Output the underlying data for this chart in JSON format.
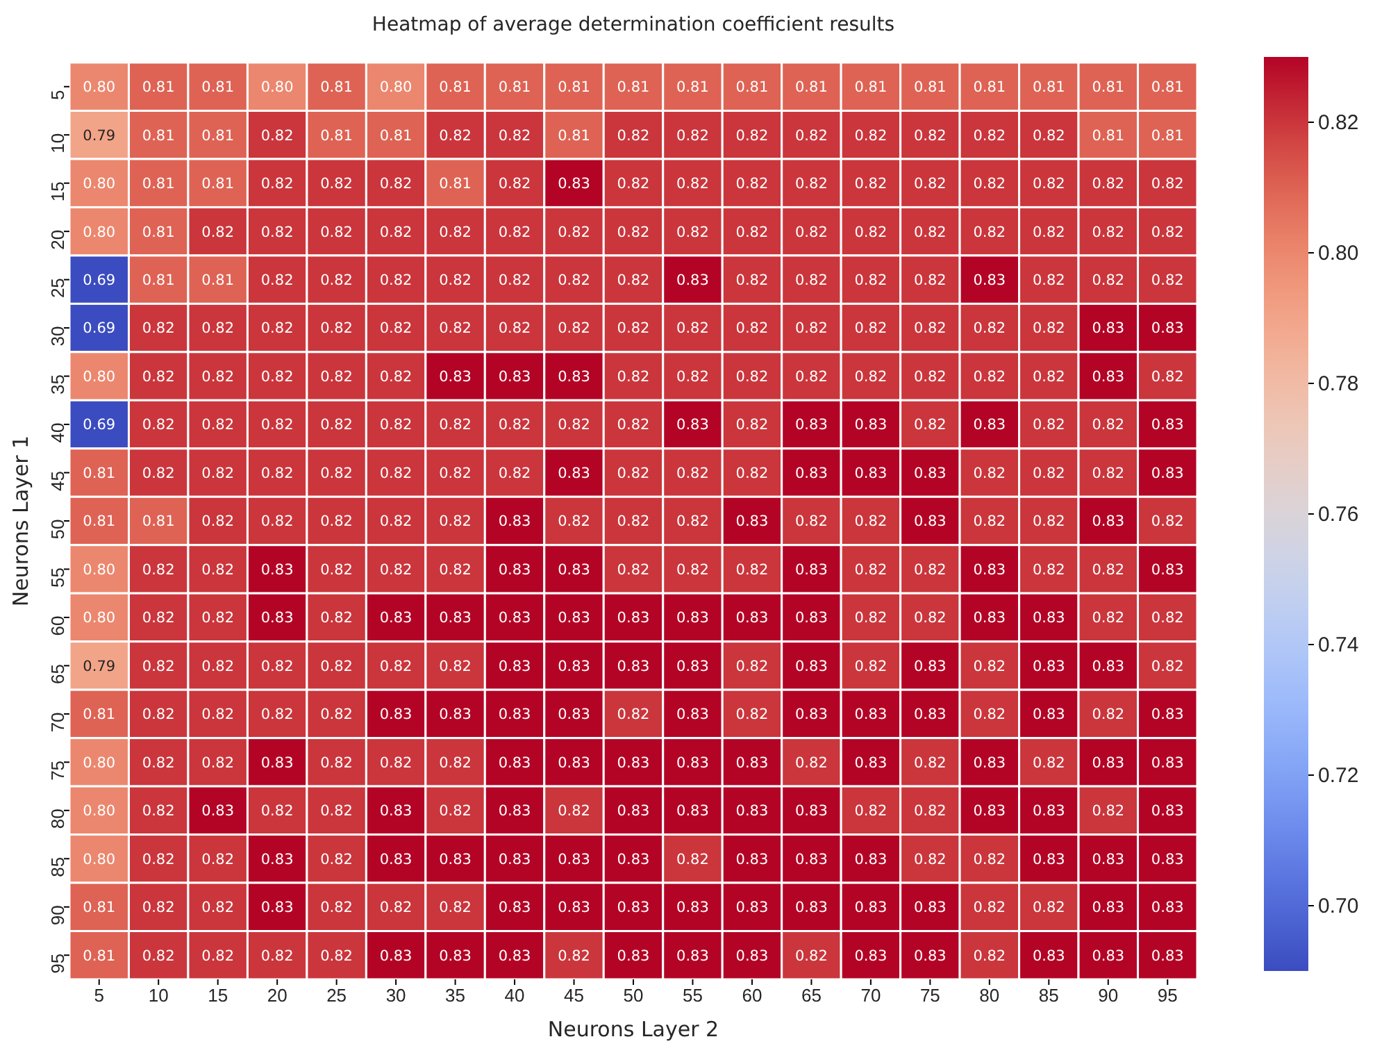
{
  "chart_data": {
    "type": "heatmap",
    "title": "Heatmap of average determination coefficient results",
    "xlabel": "Neurons Layer 2",
    "ylabel": "Neurons Layer 1",
    "categories": [
      "5",
      "10",
      "15",
      "20",
      "25",
      "30",
      "35",
      "40",
      "45",
      "50",
      "55",
      "60",
      "65",
      "70",
      "75",
      "80",
      "85",
      "90",
      "95"
    ],
    "y_categories": [
      "5",
      "10",
      "15",
      "20",
      "25",
      "30",
      "35",
      "40",
      "45",
      "50",
      "55",
      "60",
      "65",
      "70",
      "75",
      "80",
      "85",
      "90",
      "95"
    ],
    "cells": [
      [
        0.8,
        0.81,
        0.81,
        0.8,
        0.81,
        0.8,
        0.81,
        0.81,
        0.81,
        0.81,
        0.81,
        0.81,
        0.81,
        0.81,
        0.81,
        0.81,
        0.81,
        0.81,
        0.81
      ],
      [
        0.79,
        0.81,
        0.81,
        0.82,
        0.81,
        0.81,
        0.82,
        0.82,
        0.81,
        0.82,
        0.82,
        0.82,
        0.82,
        0.82,
        0.82,
        0.82,
        0.82,
        0.81,
        0.81
      ],
      [
        0.8,
        0.81,
        0.81,
        0.82,
        0.82,
        0.82,
        0.81,
        0.82,
        0.83,
        0.82,
        0.82,
        0.82,
        0.82,
        0.82,
        0.82,
        0.82,
        0.82,
        0.82,
        0.82
      ],
      [
        0.8,
        0.81,
        0.82,
        0.82,
        0.82,
        0.82,
        0.82,
        0.82,
        0.82,
        0.82,
        0.82,
        0.82,
        0.82,
        0.82,
        0.82,
        0.82,
        0.82,
        0.82,
        0.82
      ],
      [
        0.69,
        0.81,
        0.81,
        0.82,
        0.82,
        0.82,
        0.82,
        0.82,
        0.82,
        0.82,
        0.83,
        0.82,
        0.82,
        0.82,
        0.82,
        0.83,
        0.82,
        0.82,
        0.82
      ],
      [
        0.69,
        0.82,
        0.82,
        0.82,
        0.82,
        0.82,
        0.82,
        0.82,
        0.82,
        0.82,
        0.82,
        0.82,
        0.82,
        0.82,
        0.82,
        0.82,
        0.82,
        0.83,
        0.83
      ],
      [
        0.8,
        0.82,
        0.82,
        0.82,
        0.82,
        0.82,
        0.83,
        0.83,
        0.83,
        0.82,
        0.82,
        0.82,
        0.82,
        0.82,
        0.82,
        0.82,
        0.82,
        0.83,
        0.82
      ],
      [
        0.69,
        0.82,
        0.82,
        0.82,
        0.82,
        0.82,
        0.82,
        0.82,
        0.82,
        0.82,
        0.83,
        0.82,
        0.83,
        0.83,
        0.82,
        0.83,
        0.82,
        0.82,
        0.83
      ],
      [
        0.81,
        0.82,
        0.82,
        0.82,
        0.82,
        0.82,
        0.82,
        0.82,
        0.83,
        0.82,
        0.82,
        0.82,
        0.83,
        0.83,
        0.83,
        0.82,
        0.82,
        0.82,
        0.83
      ],
      [
        0.81,
        0.81,
        0.82,
        0.82,
        0.82,
        0.82,
        0.82,
        0.83,
        0.82,
        0.82,
        0.82,
        0.83,
        0.82,
        0.82,
        0.83,
        0.82,
        0.82,
        0.83,
        0.82
      ],
      [
        0.8,
        0.82,
        0.82,
        0.83,
        0.82,
        0.82,
        0.82,
        0.83,
        0.83,
        0.82,
        0.82,
        0.82,
        0.83,
        0.82,
        0.82,
        0.83,
        0.82,
        0.82,
        0.83
      ],
      [
        0.8,
        0.82,
        0.82,
        0.83,
        0.82,
        0.83,
        0.83,
        0.83,
        0.83,
        0.83,
        0.83,
        0.83,
        0.83,
        0.82,
        0.82,
        0.83,
        0.83,
        0.82,
        0.82
      ],
      [
        0.79,
        0.82,
        0.82,
        0.82,
        0.82,
        0.82,
        0.82,
        0.83,
        0.83,
        0.83,
        0.83,
        0.82,
        0.83,
        0.82,
        0.83,
        0.82,
        0.83,
        0.83,
        0.82
      ],
      [
        0.81,
        0.82,
        0.82,
        0.82,
        0.82,
        0.83,
        0.83,
        0.83,
        0.83,
        0.82,
        0.83,
        0.82,
        0.83,
        0.83,
        0.83,
        0.82,
        0.83,
        0.82,
        0.83
      ],
      [
        0.8,
        0.82,
        0.82,
        0.83,
        0.82,
        0.82,
        0.82,
        0.83,
        0.83,
        0.83,
        0.83,
        0.83,
        0.82,
        0.83,
        0.82,
        0.83,
        0.82,
        0.83,
        0.83
      ],
      [
        0.8,
        0.82,
        0.83,
        0.82,
        0.82,
        0.83,
        0.82,
        0.83,
        0.82,
        0.83,
        0.83,
        0.83,
        0.83,
        0.82,
        0.82,
        0.83,
        0.83,
        0.82,
        0.83
      ],
      [
        0.8,
        0.82,
        0.82,
        0.83,
        0.82,
        0.83,
        0.83,
        0.83,
        0.83,
        0.83,
        0.82,
        0.83,
        0.83,
        0.83,
        0.82,
        0.82,
        0.83,
        0.83,
        0.83
      ],
      [
        0.81,
        0.82,
        0.82,
        0.83,
        0.82,
        0.82,
        0.82,
        0.83,
        0.83,
        0.83,
        0.83,
        0.83,
        0.83,
        0.83,
        0.83,
        0.82,
        0.82,
        0.83,
        0.83
      ],
      [
        0.81,
        0.82,
        0.82,
        0.82,
        0.82,
        0.83,
        0.83,
        0.83,
        0.82,
        0.83,
        0.83,
        0.83,
        0.82,
        0.83,
        0.83,
        0.82,
        0.83,
        0.83,
        0.83
      ]
    ],
    "cell_labels": [
      [
        "0.80",
        "0.81",
        "0.81",
        "0.80",
        "0.81",
        "0.80",
        "0.81",
        "0.81",
        "0.81",
        "0.81",
        "0.81",
        "0.81",
        "0.81",
        "0.81",
        "0.81",
        "0.81",
        "0.81",
        "0.81",
        "0.81"
      ],
      [
        "0.79",
        "0.81",
        "0.81",
        "0.82",
        "0.81",
        "0.81",
        "0.82",
        "0.82",
        "0.81",
        "0.82",
        "0.82",
        "0.82",
        "0.82",
        "0.82",
        "0.82",
        "0.82",
        "0.82",
        "0.81",
        "0.81"
      ],
      [
        "0.80",
        "0.81",
        "0.81",
        "0.82",
        "0.82",
        "0.82",
        "0.81",
        "0.82",
        "0.83",
        "0.82",
        "0.82",
        "0.82",
        "0.82",
        "0.82",
        "0.82",
        "0.82",
        "0.82",
        "0.82",
        "0.82"
      ],
      [
        "0.80",
        "0.81",
        "0.82",
        "0.82",
        "0.82",
        "0.82",
        "0.82",
        "0.82",
        "0.82",
        "0.82",
        "0.82",
        "0.82",
        "0.82",
        "0.82",
        "0.82",
        "0.82",
        "0.82",
        "0.82",
        "0.82"
      ],
      [
        "0.69",
        "0.81",
        "0.81",
        "0.82",
        "0.82",
        "0.82",
        "0.82",
        "0.82",
        "0.82",
        "0.82",
        "0.83",
        "0.82",
        "0.82",
        "0.82",
        "0.82",
        "0.83",
        "0.82",
        "0.82",
        "0.82"
      ],
      [
        "0.69",
        "0.82",
        "0.82",
        "0.82",
        "0.82",
        "0.82",
        "0.82",
        "0.82",
        "0.82",
        "0.82",
        "0.82",
        "0.82",
        "0.82",
        "0.82",
        "0.82",
        "0.82",
        "0.82",
        "0.83",
        "0.83"
      ],
      [
        "0.80",
        "0.82",
        "0.82",
        "0.82",
        "0.82",
        "0.82",
        "0.83",
        "0.83",
        "0.83",
        "0.82",
        "0.82",
        "0.82",
        "0.82",
        "0.82",
        "0.82",
        "0.82",
        "0.82",
        "0.83",
        "0.82"
      ],
      [
        "0.69",
        "0.82",
        "0.82",
        "0.82",
        "0.82",
        "0.82",
        "0.82",
        "0.82",
        "0.82",
        "0.82",
        "0.83",
        "0.82",
        "0.83",
        "0.83",
        "0.82",
        "0.83",
        "0.82",
        "0.82",
        "0.83"
      ],
      [
        "0.81",
        "0.82",
        "0.82",
        "0.82",
        "0.82",
        "0.82",
        "0.82",
        "0.82",
        "0.83",
        "0.82",
        "0.82",
        "0.82",
        "0.83",
        "0.83",
        "0.83",
        "0.82",
        "0.82",
        "0.82",
        "0.83"
      ],
      [
        "0.81",
        "0.81",
        "0.82",
        "0.82",
        "0.82",
        "0.82",
        "0.82",
        "0.83",
        "0.82",
        "0.82",
        "0.82",
        "0.83",
        "0.82",
        "0.82",
        "0.83",
        "0.82",
        "0.82",
        "0.83",
        "0.82"
      ],
      [
        "0.80",
        "0.82",
        "0.82",
        "0.83",
        "0.82",
        "0.82",
        "0.82",
        "0.83",
        "0.83",
        "0.82",
        "0.82",
        "0.82",
        "0.83",
        "0.82",
        "0.82",
        "0.83",
        "0.82",
        "0.82",
        "0.83"
      ],
      [
        "0.80",
        "0.82",
        "0.82",
        "0.83",
        "0.82",
        "0.83",
        "0.83",
        "0.83",
        "0.83",
        "0.83",
        "0.83",
        "0.83",
        "0.83",
        "0.82",
        "0.82",
        "0.83",
        "0.83",
        "0.82",
        "0.82"
      ],
      [
        "0.79",
        "0.82",
        "0.82",
        "0.82",
        "0.82",
        "0.82",
        "0.82",
        "0.83",
        "0.83",
        "0.83",
        "0.83",
        "0.82",
        "0.83",
        "0.82",
        "0.83",
        "0.82",
        "0.83",
        "0.83",
        "0.82"
      ],
      [
        "0.81",
        "0.82",
        "0.82",
        "0.82",
        "0.82",
        "0.83",
        "0.83",
        "0.83",
        "0.83",
        "0.82",
        "0.83",
        "0.82",
        "0.83",
        "0.83",
        "0.83",
        "0.82",
        "0.83",
        "0.82",
        "0.83"
      ],
      [
        "0.80",
        "0.82",
        "0.82",
        "0.83",
        "0.82",
        "0.82",
        "0.82",
        "0.83",
        "0.83",
        "0.83",
        "0.83",
        "0.83",
        "0.82",
        "0.83",
        "0.82",
        "0.83",
        "0.82",
        "0.83",
        "0.83"
      ],
      [
        "0.80",
        "0.82",
        "0.83",
        "0.82",
        "0.82",
        "0.83",
        "0.82",
        "0.83",
        "0.82",
        "0.83",
        "0.83",
        "0.83",
        "0.83",
        "0.82",
        "0.82",
        "0.83",
        "0.83",
        "0.82",
        "0.83"
      ],
      [
        "0.80",
        "0.82",
        "0.82",
        "0.83",
        "0.82",
        "0.83",
        "0.83",
        "0.83",
        "0.83",
        "0.83",
        "0.82",
        "0.83",
        "0.83",
        "0.83",
        "0.82",
        "0.82",
        "0.83",
        "0.83",
        "0.83"
      ],
      [
        "0.81",
        "0.82",
        "0.82",
        "0.83",
        "0.82",
        "0.82",
        "0.82",
        "0.83",
        "0.83",
        "0.83",
        "0.83",
        "0.83",
        "0.83",
        "0.83",
        "0.83",
        "0.82",
        "0.82",
        "0.83",
        "0.83"
      ],
      [
        "0.81",
        "0.82",
        "0.82",
        "0.82",
        "0.82",
        "0.83",
        "0.83",
        "0.83",
        "0.82",
        "0.83",
        "0.83",
        "0.83",
        "0.82",
        "0.83",
        "0.83",
        "0.82",
        "0.83",
        "0.83",
        "0.83"
      ]
    ],
    "clim": [
      0.69,
      0.83
    ],
    "cticks": [
      {
        "value": 0.7,
        "label": "0.70"
      },
      0.72,
      0.74,
      0.76,
      0.78,
      {
        "value": 0.8,
        "label": "0.80"
      },
      0.82
    ]
  }
}
